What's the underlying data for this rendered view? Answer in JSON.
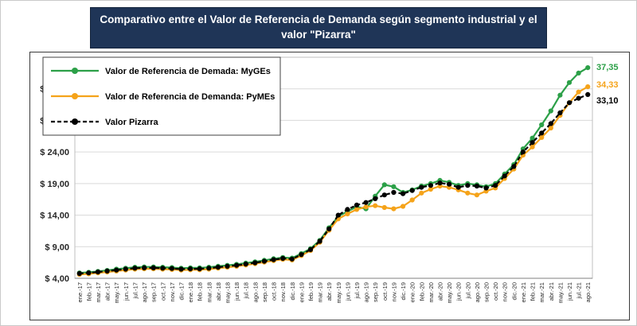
{
  "title": "Comparativo entre el Valor de Referencia de Demanda según segmento industrial y el valor \"Pizarra\"",
  "colors": {
    "title_bg": "#1F3557",
    "title_text": "#FFFFFF",
    "myges_green": "#2CA048",
    "pymes_orange": "#F5A31A",
    "pizarra_black": "#000000",
    "gridline": "#D9D9D9"
  },
  "chart_data": {
    "type": "line",
    "title": "Comparativo entre el Valor de Referencia de Demanda según segmento industrial y el valor \"Pizarra\"",
    "xlabel": "",
    "ylabel": "",
    "ylim": [
      4,
      39
    ],
    "grid": "horizontal",
    "legend_position": "top-left",
    "yticks": {
      "values": [
        4,
        9,
        14,
        19,
        24,
        29,
        34
      ],
      "labels": [
        "$ 4,00",
        "$ 9,00",
        "$ 14,00",
        "$ 19,00",
        "$ 24,00",
        "$ 29,00",
        "$ 34,00"
      ]
    },
    "categories": [
      "ene.-17",
      "feb.-17",
      "mar.-17",
      "abr.-17",
      "may.-17",
      "jun.-17",
      "jul.-17",
      "ago.-17",
      "sep.-17",
      "oct.-17",
      "nov.-17",
      "dic.-17",
      "ene.-18",
      "feb.-18",
      "mar.-18",
      "abr.-18",
      "may.-18",
      "jun.-18",
      "jul.-18",
      "ago.-18",
      "sep.-18",
      "oct.-18",
      "nov.-18",
      "dic.-18",
      "ene.-19",
      "feb.-19",
      "mar.-19",
      "abr.-19",
      "may.-19",
      "jun.-19",
      "jul.-19",
      "ago.-19",
      "sep.-19",
      "oct.-19",
      "nov.-19",
      "dic.-19",
      "ene.-20",
      "feb.-20",
      "mar.-20",
      "abr.-20",
      "may.-20",
      "jun.-20",
      "jul.-20",
      "ago.-20",
      "sep.-20",
      "oct.-20",
      "nov.-20",
      "dic.-20",
      "ene.-21",
      "feb.-21",
      "mar.-21",
      "abr.-21",
      "may.-21",
      "jun.-21",
      "jul.-21",
      "ago.-21"
    ],
    "series": [
      {
        "name": "Valor de Referencia de Demada: MyGEs",
        "color": "#2CA048",
        "style": "solid",
        "marker": "circle",
        "end_label": "37,35",
        "values": [
          4.85,
          4.95,
          5.1,
          5.25,
          5.45,
          5.6,
          5.75,
          5.8,
          5.8,
          5.75,
          5.7,
          5.6,
          5.65,
          5.65,
          5.75,
          5.9,
          6.05,
          6.2,
          6.4,
          6.6,
          6.85,
          7.1,
          7.3,
          7.2,
          7.9,
          8.7,
          10.0,
          12.0,
          13.8,
          14.6,
          15.3,
          15.0,
          17.0,
          18.8,
          18.5,
          17.6,
          18.0,
          18.6,
          19.0,
          19.5,
          19.2,
          18.7,
          19.0,
          18.8,
          18.5,
          19.0,
          20.5,
          22.0,
          24.5,
          26.2,
          28.3,
          30.5,
          33.0,
          35.0,
          36.5,
          37.35
        ]
      },
      {
        "name": "Valor de Referencia de Demanda: PyMEs",
        "color": "#F5A31A",
        "style": "solid",
        "marker": "circle",
        "end_label": "34,33",
        "values": [
          4.6,
          4.7,
          4.85,
          5.0,
          5.15,
          5.3,
          5.45,
          5.5,
          5.5,
          5.45,
          5.4,
          5.3,
          5.35,
          5.35,
          5.45,
          5.6,
          5.75,
          5.9,
          6.1,
          6.3,
          6.55,
          6.8,
          7.0,
          6.9,
          7.6,
          8.4,
          9.7,
          11.6,
          13.4,
          14.2,
          14.9,
          15.3,
          15.5,
          15.2,
          15.0,
          15.4,
          16.4,
          17.5,
          18.1,
          18.6,
          18.4,
          18.0,
          17.5,
          17.2,
          17.8,
          18.3,
          19.8,
          21.3,
          23.5,
          24.8,
          26.3,
          27.8,
          29.8,
          31.8,
          33.5,
          34.33
        ]
      },
      {
        "name": "Valor Pizarra",
        "color": "#000000",
        "style": "dashed",
        "marker": "circle",
        "end_label": "33,10",
        "values": [
          4.75,
          4.85,
          5.0,
          5.15,
          5.3,
          5.45,
          5.6,
          5.65,
          5.65,
          5.6,
          5.55,
          5.45,
          5.5,
          5.5,
          5.6,
          5.75,
          5.9,
          6.05,
          6.25,
          6.45,
          6.7,
          6.95,
          7.15,
          7.05,
          7.75,
          8.55,
          9.85,
          11.8,
          14.0,
          14.9,
          15.6,
          16.0,
          16.6,
          17.2,
          17.6,
          17.4,
          17.9,
          18.4,
          18.7,
          19.1,
          18.9,
          18.4,
          18.7,
          18.6,
          18.3,
          18.7,
          20.2,
          21.7,
          24.0,
          25.5,
          27.0,
          28.5,
          30.2,
          31.8,
          32.5,
          33.1
        ]
      }
    ]
  }
}
